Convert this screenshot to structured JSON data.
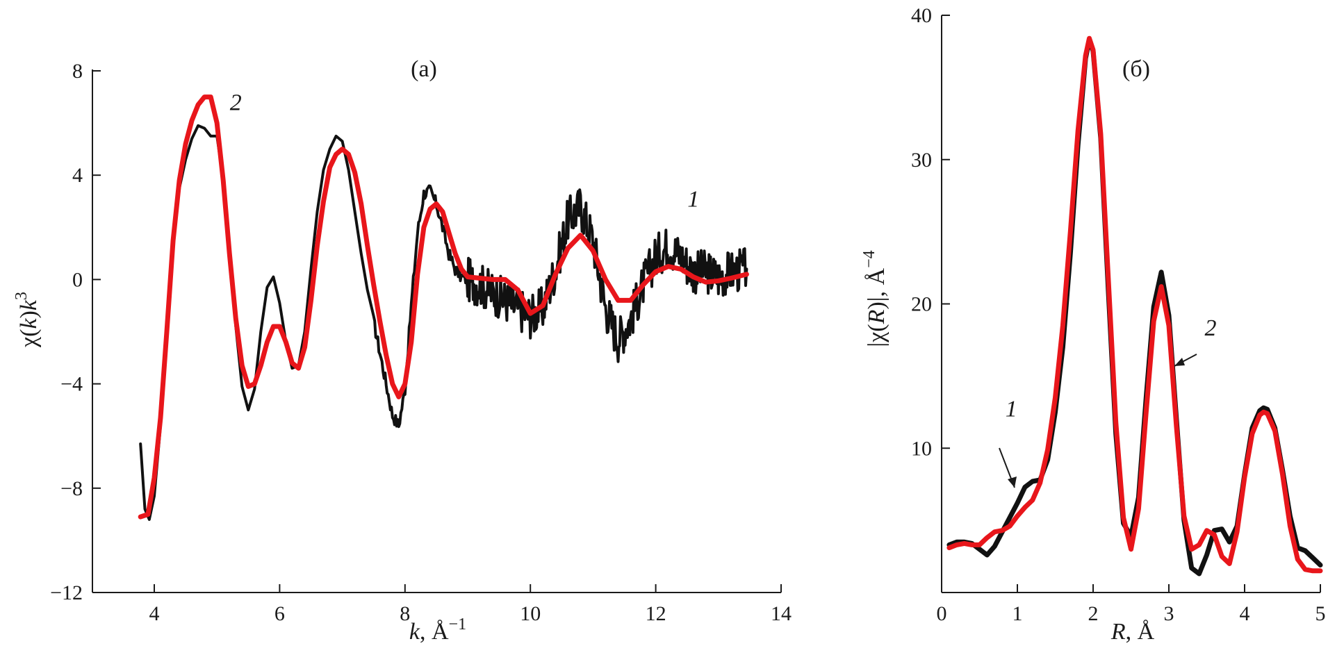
{
  "chart_data": [
    {
      "type": "line",
      "title": "(а)",
      "xlabel_var": "k",
      "xlabel_rest": ", Å",
      "xlabel_sup": "−1",
      "ylabel_pre": "χ(",
      "ylabel_var": "k",
      "ylabel_mid": ")",
      "ylabel_var2": "k",
      "ylabel_sup": "3",
      "xlim": [
        3,
        14
      ],
      "ylim": [
        -12,
        8
      ],
      "xticks": [
        "4",
        "6",
        "8",
        "10",
        "12",
        "14"
      ],
      "yticks": [
        "8",
        "4",
        "0",
        "−4",
        "−8",
        "−12"
      ],
      "annotations": [
        {
          "text": "2",
          "x": 5.3,
          "y": 6.5
        },
        {
          "text": "1",
          "x": 12.6,
          "y": 2.8
        }
      ],
      "series": [
        {
          "id": "1",
          "color": "#111111",
          "noise": 0.85,
          "noise_from": 9.0,
          "x": [
            3.78,
            3.85,
            3.92,
            4.0,
            4.1,
            4.2,
            4.3,
            4.4,
            4.5,
            4.6,
            4.7,
            4.8,
            4.9,
            5.0,
            5.1,
            5.2,
            5.3,
            5.4,
            5.5,
            5.6,
            5.7,
            5.8,
            5.9,
            6.0,
            6.1,
            6.2,
            6.3,
            6.4,
            6.5,
            6.6,
            6.7,
            6.8,
            6.9,
            7.0,
            7.1,
            7.2,
            7.3,
            7.4,
            7.5,
            7.6,
            7.7,
            7.8,
            7.9,
            8.0,
            8.1,
            8.2,
            8.3,
            8.4,
            8.5,
            8.6,
            8.7,
            8.8,
            8.9,
            9.0,
            9.2,
            9.4,
            9.6,
            9.8,
            10.0,
            10.2,
            10.4,
            10.6,
            10.8,
            11.0,
            11.2,
            11.4,
            11.6,
            11.8,
            12.0,
            12.2,
            12.4,
            12.6,
            12.8,
            13.0,
            13.2,
            13.45
          ],
          "y": [
            -6.3,
            -8.8,
            -9.2,
            -8.3,
            -5.6,
            -2.0,
            1.4,
            3.5,
            4.6,
            5.4,
            5.9,
            5.8,
            5.5,
            5.5,
            3.8,
            1.0,
            -1.8,
            -4.1,
            -5.0,
            -4.2,
            -2.0,
            -0.3,
            0.1,
            -0.9,
            -2.4,
            -3.4,
            -3.3,
            -2.0,
            0.4,
            2.6,
            4.2,
            5.0,
            5.5,
            5.3,
            4.2,
            2.6,
            1.0,
            -0.4,
            -1.6,
            -2.8,
            -4.0,
            -5.2,
            -5.6,
            -4.2,
            -1.0,
            1.8,
            3.3,
            3.4,
            2.9,
            2.0,
            1.0,
            0.4,
            0.1,
            0.0,
            -0.2,
            -0.5,
            -0.8,
            -1.1,
            -1.4,
            -1.1,
            0.4,
            2.3,
            2.8,
            1.5,
            -1.1,
            -2.3,
            -1.5,
            -0.2,
            0.9,
            1.3,
            0.9,
            0.3,
            0.3,
            0.1,
            0.3,
            0.4
          ]
        },
        {
          "id": "2",
          "color": "#e8161b",
          "noise": 0,
          "noise_from": 0,
          "x": [
            3.78,
            3.9,
            4.0,
            4.1,
            4.2,
            4.3,
            4.4,
            4.5,
            4.6,
            4.7,
            4.8,
            4.9,
            5.0,
            5.1,
            5.2,
            5.3,
            5.4,
            5.5,
            5.6,
            5.7,
            5.8,
            5.9,
            6.0,
            6.1,
            6.2,
            6.3,
            6.4,
            6.5,
            6.6,
            6.7,
            6.8,
            6.9,
            7.0,
            7.1,
            7.2,
            7.3,
            7.4,
            7.5,
            7.6,
            7.7,
            7.8,
            7.9,
            8.0,
            8.1,
            8.2,
            8.3,
            8.4,
            8.5,
            8.6,
            8.7,
            8.8,
            8.9,
            9.0,
            9.2,
            9.4,
            9.6,
            9.8,
            10.0,
            10.2,
            10.4,
            10.6,
            10.8,
            11.0,
            11.2,
            11.4,
            11.6,
            11.8,
            12.0,
            12.2,
            12.4,
            12.6,
            12.8,
            13.0,
            13.2,
            13.45
          ],
          "y": [
            -9.1,
            -9.0,
            -7.6,
            -5.3,
            -2.0,
            1.5,
            3.8,
            5.2,
            6.1,
            6.7,
            7.0,
            7.0,
            6.0,
            3.8,
            1.0,
            -1.5,
            -3.3,
            -4.1,
            -4.0,
            -3.3,
            -2.4,
            -1.8,
            -1.8,
            -2.4,
            -3.2,
            -3.4,
            -2.6,
            -0.8,
            1.3,
            3.0,
            4.3,
            4.8,
            5.0,
            4.8,
            4.1,
            2.9,
            1.3,
            -0.2,
            -1.6,
            -2.9,
            -4.0,
            -4.5,
            -4.0,
            -2.4,
            0.2,
            2.0,
            2.7,
            2.9,
            2.6,
            1.8,
            1.0,
            0.4,
            0.1,
            0.05,
            0.0,
            0.0,
            -0.4,
            -1.3,
            -1.0,
            0.2,
            1.2,
            1.7,
            1.1,
            0.0,
            -0.8,
            -0.8,
            -0.2,
            0.3,
            0.5,
            0.4,
            0.1,
            -0.1,
            -0.05,
            0.05,
            0.2
          ]
        }
      ]
    },
    {
      "type": "line",
      "title": "(б)",
      "xlabel_var": "R",
      "xlabel_rest": ", Å",
      "xlabel_sup": "",
      "ylabel_pre": "|χ(",
      "ylabel_var": "R",
      "ylabel_mid": ")|, Å",
      "ylabel_var2": "",
      "ylabel_sup": "−4",
      "xlim": [
        0,
        5
      ],
      "ylim": [
        0,
        40
      ],
      "xticks": [
        "0",
        "1",
        "2",
        "3",
        "4",
        "5"
      ],
      "yticks": [
        "40",
        "30",
        "20",
        "10"
      ],
      "annotations": [
        {
          "text": "1",
          "x": 0.92,
          "y": 12.2
        },
        {
          "text": "2",
          "x": 3.55,
          "y": 17.8
        }
      ],
      "series": [
        {
          "id": "1",
          "color": "#111111",
          "noise": 0,
          "noise_from": 0,
          "x": [
            0.1,
            0.2,
            0.3,
            0.4,
            0.5,
            0.6,
            0.7,
            0.8,
            0.9,
            1.0,
            1.1,
            1.2,
            1.3,
            1.4,
            1.5,
            1.6,
            1.7,
            1.8,
            1.9,
            1.95,
            2.0,
            2.1,
            2.2,
            2.3,
            2.4,
            2.5,
            2.6,
            2.7,
            2.8,
            2.9,
            3.0,
            3.1,
            3.2,
            3.3,
            3.4,
            3.5,
            3.6,
            3.7,
            3.8,
            3.9,
            4.0,
            4.1,
            4.2,
            4.25,
            4.3,
            4.4,
            4.5,
            4.6,
            4.7,
            4.8,
            4.9,
            5.0
          ],
          "y": [
            3.3,
            3.5,
            3.5,
            3.4,
            3.0,
            2.6,
            3.2,
            4.2,
            5.2,
            6.2,
            7.3,
            7.7,
            7.8,
            9.2,
            12.5,
            17.0,
            23.5,
            31.0,
            37.0,
            38.3,
            37.5,
            31.5,
            21.0,
            11.0,
            4.8,
            3.9,
            6.6,
            13.5,
            19.8,
            22.2,
            19.2,
            12.0,
            5.0,
            1.7,
            1.3,
            2.6,
            4.3,
            4.4,
            3.5,
            4.6,
            8.2,
            11.4,
            12.6,
            12.8,
            12.7,
            11.4,
            8.5,
            5.3,
            3.1,
            2.9,
            2.4,
            1.9
          ]
        },
        {
          "id": "2",
          "color": "#e8161b",
          "noise": 0,
          "noise_from": 0,
          "x": [
            0.1,
            0.2,
            0.3,
            0.4,
            0.5,
            0.6,
            0.7,
            0.8,
            0.9,
            1.0,
            1.1,
            1.2,
            1.3,
            1.4,
            1.5,
            1.6,
            1.7,
            1.8,
            1.9,
            1.95,
            2.0,
            2.1,
            2.2,
            2.3,
            2.4,
            2.5,
            2.6,
            2.7,
            2.8,
            2.9,
            3.0,
            3.1,
            3.2,
            3.3,
            3.4,
            3.5,
            3.6,
            3.7,
            3.8,
            3.9,
            4.0,
            4.1,
            4.2,
            4.25,
            4.3,
            4.4,
            4.5,
            4.6,
            4.7,
            4.8,
            4.9,
            5.0
          ],
          "y": [
            3.1,
            3.3,
            3.4,
            3.3,
            3.3,
            3.8,
            4.2,
            4.3,
            4.6,
            5.3,
            5.9,
            6.4,
            7.6,
            9.9,
            13.5,
            18.5,
            25.0,
            32.0,
            37.2,
            38.4,
            37.6,
            31.8,
            21.8,
            11.8,
            5.2,
            3.0,
            5.8,
            12.5,
            18.8,
            21.2,
            18.5,
            11.5,
            5.3,
            3.0,
            3.3,
            4.3,
            4.0,
            2.5,
            2.0,
            4.2,
            8.0,
            11.0,
            12.3,
            12.5,
            12.4,
            11.2,
            8.2,
            4.6,
            2.3,
            1.6,
            1.5,
            1.5
          ]
        }
      ]
    }
  ]
}
